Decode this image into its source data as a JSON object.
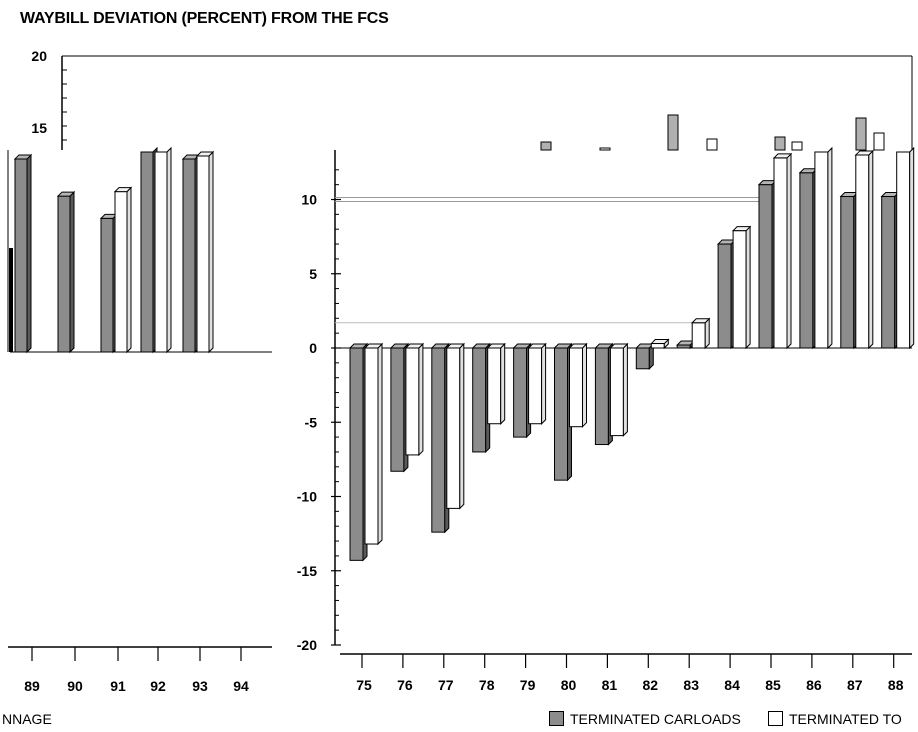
{
  "page_title": "WAYBILL DEVIATION (PERCENT) FROM THE FCS",
  "colors": {
    "carloads": "#8c8c8c",
    "tonnage": "#ffffff",
    "axis": "#000000",
    "background": "#ffffff"
  },
  "legend": {
    "left_fragment": "NNAGE",
    "carloads_label": "TERMINATED CARLOADS",
    "tonnage_label": "TERMINATED TO"
  },
  "chart_data": [
    {
      "type": "bar",
      "title": "",
      "xlabel": "",
      "ylabel": "",
      "ylim": [
        -20,
        20
      ],
      "y_ticks": [
        20,
        15,
        10,
        5,
        0,
        -5,
        -10,
        -15,
        -20
      ],
      "grid": false,
      "legend_position": "bottom-right",
      "categories": [
        "75",
        "76",
        "77",
        "78",
        "79",
        "80",
        "81",
        "82",
        "83",
        "84",
        "85",
        "86",
        "87",
        "88"
      ],
      "series": [
        {
          "name": "TERMINATED CARLOADS",
          "values": [
            -14.3,
            -8.3,
            -12.4,
            -7.0,
            -6.0,
            -8.9,
            -6.5,
            -1.4,
            0.2,
            7.0,
            11.0,
            11.8,
            10.2,
            10.2
          ]
        },
        {
          "name": "TERMINATED TO",
          "values": [
            -13.2,
            -7.2,
            -10.8,
            -5.1,
            -5.1,
            -5.3,
            -5.9,
            0.3,
            1.7,
            7.9,
            12.8,
            13.5,
            13.0,
            13.2
          ]
        }
      ],
      "clipped_top_categories": [
        "79",
        "81",
        "82",
        "83",
        "85",
        "86",
        "87"
      ]
    },
    {
      "type": "bar",
      "title": "",
      "xlabel": "",
      "ylabel": "",
      "categories": [
        "89",
        "90",
        "91",
        "92",
        "93",
        "94"
      ],
      "series": [
        {
          "name": "TERMINATED CARLOADS",
          "values": [
            13.0,
            10.5,
            9.0,
            13.5,
            13.0,
            0.0
          ]
        },
        {
          "name": "TERMINATED TO",
          "values": [
            0.0,
            0.0,
            10.8,
            13.5,
            13.2,
            0.0
          ]
        }
      ]
    }
  ]
}
